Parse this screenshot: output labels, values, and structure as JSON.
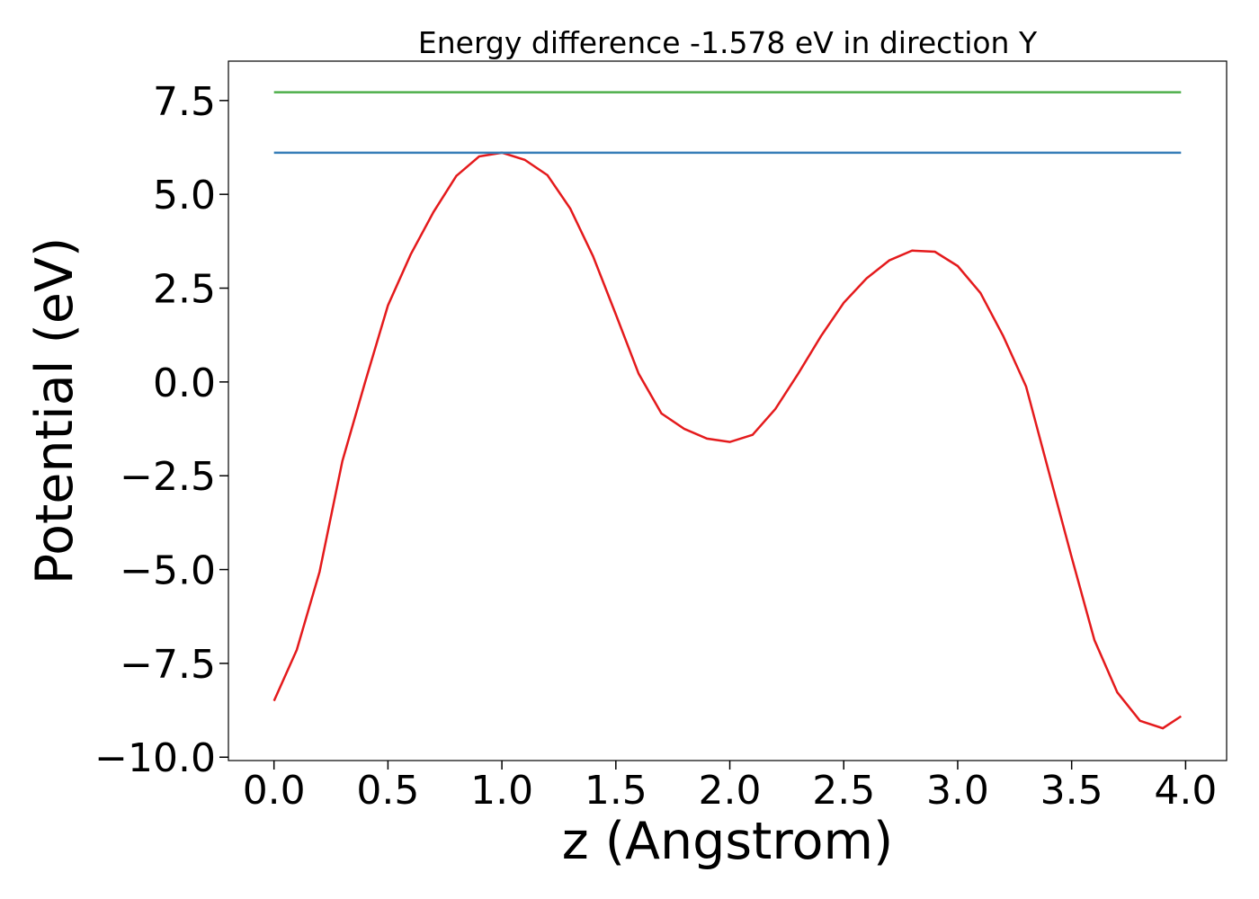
{
  "chart_data": {
    "type": "line",
    "title": "Energy difference -1.578 eV in direction Y",
    "xlabel": "z (Angstrom)",
    "ylabel": "Potential (eV)",
    "xlim": [
      -0.2,
      4.18
    ],
    "ylim": [
      -10.09,
      8.55
    ],
    "xticks": [
      {
        "value": 0,
        "label": "0.0"
      },
      {
        "value": 0.5,
        "label": "0.5"
      },
      {
        "value": 1,
        "label": "1.0"
      },
      {
        "value": 1.5,
        "label": "1.5"
      },
      {
        "value": 2,
        "label": "2.0"
      },
      {
        "value": 2.5,
        "label": "2.5"
      },
      {
        "value": 3,
        "label": "3.0"
      },
      {
        "value": 3.5,
        "label": "3.5"
      },
      {
        "value": 4,
        "label": "4.0"
      }
    ],
    "yticks": [
      {
        "value": -10,
        "label": "−10.0"
      },
      {
        "value": -7.5,
        "label": "−7.5"
      },
      {
        "value": -5,
        "label": "−5.0"
      },
      {
        "value": -2.5,
        "label": "−2.5"
      },
      {
        "value": 0,
        "label": "0.0"
      },
      2.5,
      {
        "value": 5,
        "label": "5.0"
      },
      7.5
    ],
    "grid": false,
    "series": [
      {
        "color": "#e41a1c",
        "x": [
          0,
          0.1,
          0.2,
          0.3,
          0.4,
          0.5,
          0.6,
          0.7,
          0.8,
          0.9,
          1.0,
          1.1,
          1.2,
          1.3,
          1.4,
          1.5,
          1.6,
          1.7,
          1.8,
          1.9,
          2.0,
          2.1,
          2.2,
          2.3,
          2.4,
          2.5,
          2.6,
          2.7,
          2.8,
          2.9,
          3.0,
          3.1,
          3.2,
          3.3,
          3.4,
          3.5,
          3.6,
          3.7,
          3.8,
          3.9,
          3.98
        ],
        "values": [
          -8.5,
          -7.14,
          -5.06,
          -2.11,
          0.0,
          2.04,
          3.4,
          4.53,
          5.49,
          6.01,
          6.11,
          5.92,
          5.51,
          4.62,
          3.35,
          1.8,
          0.22,
          -0.84,
          -1.25,
          -1.51,
          -1.6,
          -1.41,
          -0.72,
          0.22,
          1.22,
          2.11,
          2.76,
          3.24,
          3.5,
          3.47,
          3.09,
          2.37,
          1.22,
          -0.12,
          -2.4,
          -4.67,
          -6.88,
          -8.27,
          -9.03,
          -9.23,
          -8.91
        ]
      },
      {
        "color": "#377eb8",
        "x": [
          0,
          3.98
        ],
        "values": [
          6.11,
          6.11
        ]
      },
      {
        "color": "#4daf4a",
        "x": [
          0,
          3.98
        ],
        "values": [
          7.72,
          7.72
        ]
      }
    ]
  }
}
